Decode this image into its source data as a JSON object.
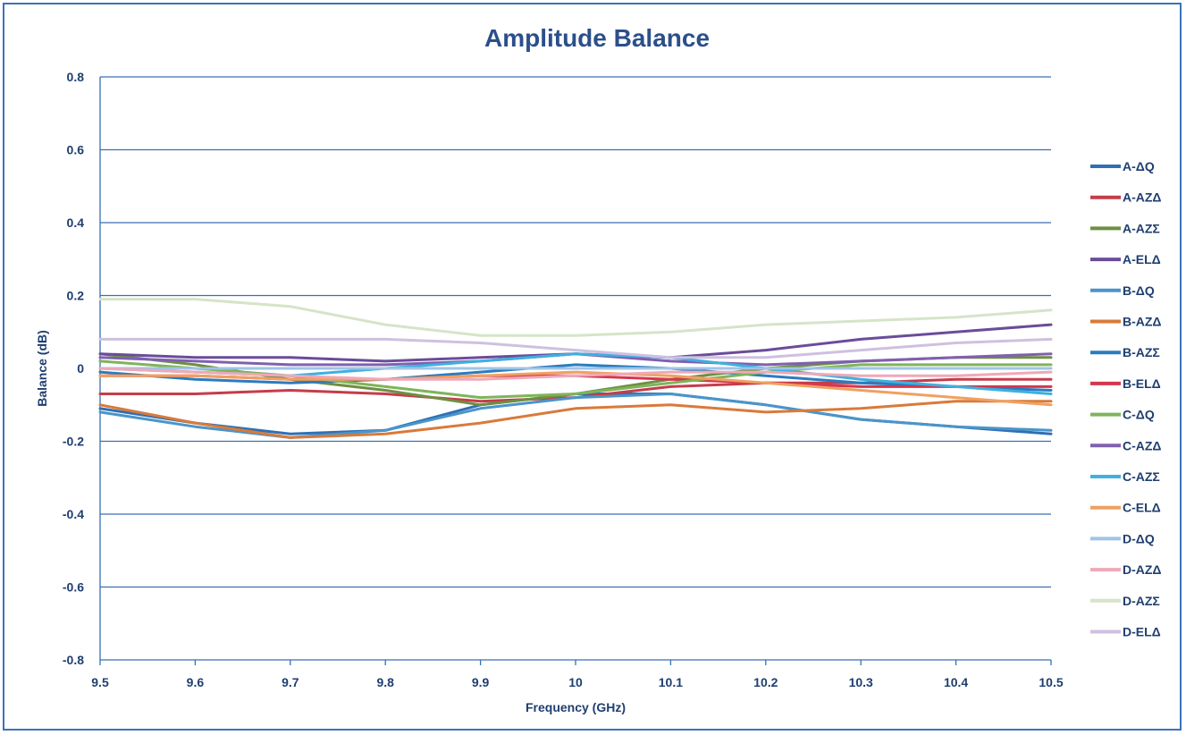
{
  "chart_data": {
    "type": "line",
    "title": "Amplitude Balance",
    "xlabel": "Frequency (GHz)",
    "ylabel": "Balance (dB)",
    "xlim": [
      9.5,
      10.5
    ],
    "ylim": [
      -0.8,
      0.8
    ],
    "x_ticks": [
      "9.5",
      "9.6",
      "9.7",
      "9.8",
      "9.9",
      "10",
      "10.1",
      "10.2",
      "10.3",
      "10.4",
      "10.5"
    ],
    "y_ticks": [
      "0.8",
      "0.6",
      "0.4",
      "0.2",
      "0",
      "-0.2",
      "-0.4",
      "-0.6",
      "-0.8"
    ],
    "grid": "horizontal",
    "legend_position": "right",
    "x": [
      9.5,
      9.6,
      9.7,
      9.8,
      9.9,
      10.0,
      10.1,
      10.2,
      10.3,
      10.4,
      10.5
    ],
    "series": [
      {
        "name": "A-ΔQ",
        "color": "#2f6fb5",
        "values": [
          -0.11,
          -0.15,
          -0.18,
          -0.17,
          -0.1,
          -0.07,
          -0.07,
          -0.1,
          -0.14,
          -0.16,
          -0.18
        ]
      },
      {
        "name": "A-AZΔ",
        "color": "#c63c4a",
        "values": [
          -0.07,
          -0.07,
          -0.06,
          -0.07,
          -0.09,
          -0.08,
          -0.05,
          -0.04,
          -0.04,
          -0.03,
          -0.03
        ]
      },
      {
        "name": "A-AZΣ",
        "color": "#6e8f42",
        "values": [
          0.04,
          0.01,
          -0.03,
          -0.06,
          -0.1,
          -0.07,
          -0.03,
          0.0,
          0.02,
          0.03,
          0.03
        ]
      },
      {
        "name": "A-ELΔ",
        "color": "#6a4c9a",
        "values": [
          0.04,
          0.03,
          0.03,
          0.02,
          0.03,
          0.04,
          0.03,
          0.05,
          0.08,
          0.1,
          0.12
        ]
      },
      {
        "name": "B-ΔQ",
        "color": "#4a95c9",
        "values": [
          -0.12,
          -0.16,
          -0.19,
          -0.17,
          -0.11,
          -0.08,
          -0.07,
          -0.1,
          -0.14,
          -0.16,
          -0.17
        ]
      },
      {
        "name": "B-AZΔ",
        "color": "#d97a3a",
        "values": [
          -0.1,
          -0.15,
          -0.19,
          -0.18,
          -0.15,
          -0.11,
          -0.1,
          -0.12,
          -0.11,
          -0.09,
          -0.09
        ]
      },
      {
        "name": "B-AZΣ",
        "color": "#2a7cc0",
        "values": [
          -0.01,
          -0.03,
          -0.04,
          -0.03,
          -0.01,
          0.01,
          0.0,
          -0.02,
          -0.04,
          -0.05,
          -0.06
        ]
      },
      {
        "name": "B-ELΔ",
        "color": "#d6364d",
        "values": [
          -0.02,
          -0.02,
          -0.03,
          -0.03,
          -0.02,
          -0.02,
          -0.03,
          -0.04,
          -0.05,
          -0.05,
          -0.05
        ]
      },
      {
        "name": "C-ΔQ",
        "color": "#7fb45a",
        "values": [
          0.02,
          0.0,
          -0.02,
          -0.05,
          -0.08,
          -0.07,
          -0.04,
          -0.01,
          0.01,
          0.01,
          0.01
        ]
      },
      {
        "name": "C-AZΔ",
        "color": "#8060b0",
        "values": [
          0.03,
          0.02,
          0.01,
          0.01,
          0.02,
          0.04,
          0.02,
          0.01,
          0.02,
          0.03,
          0.04
        ]
      },
      {
        "name": "C-AZΣ",
        "color": "#3fb0e0",
        "values": [
          0.0,
          -0.01,
          -0.02,
          0.0,
          0.02,
          0.04,
          0.03,
          0.0,
          -0.03,
          -0.05,
          -0.07
        ]
      },
      {
        "name": "C-ELΔ",
        "color": "#f0a060",
        "values": [
          -0.02,
          -0.02,
          -0.03,
          -0.03,
          -0.02,
          -0.01,
          -0.02,
          -0.04,
          -0.06,
          -0.08,
          -0.1
        ]
      },
      {
        "name": "D-ΔQ",
        "color": "#9fc4e6",
        "values": [
          0.0,
          0.0,
          0.0,
          0.0,
          0.0,
          0.0,
          0.0,
          0.0,
          0.0,
          0.0,
          0.0
        ]
      },
      {
        "name": "D-AZΔ",
        "color": "#f0a8b8",
        "values": [
          0.0,
          -0.01,
          -0.02,
          -0.03,
          -0.03,
          -0.02,
          -0.01,
          -0.01,
          -0.02,
          -0.02,
          -0.01
        ]
      },
      {
        "name": "D-AZΣ",
        "color": "#d6e4c8",
        "values": [
          0.19,
          0.19,
          0.17,
          0.12,
          0.09,
          0.09,
          0.1,
          0.12,
          0.13,
          0.14,
          0.16
        ]
      },
      {
        "name": "D-ELΔ",
        "color": "#cfc0e0",
        "values": [
          0.08,
          0.08,
          0.08,
          0.08,
          0.07,
          0.05,
          0.03,
          0.03,
          0.05,
          0.07,
          0.08
        ]
      }
    ]
  }
}
